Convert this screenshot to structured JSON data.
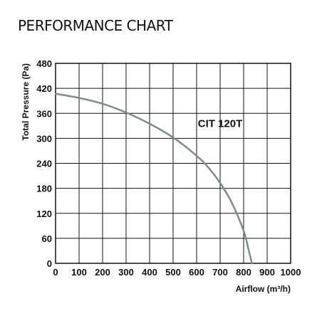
{
  "page": {
    "title": "PERFORMANCE CHART"
  },
  "chart_data": {
    "type": "line",
    "title": "PERFORMANCE CHART",
    "xlabel": "Airflow (m³/h)",
    "ylabel": "Total Pressure (Pa)",
    "xlim": [
      0,
      1000
    ],
    "ylim": [
      0,
      480
    ],
    "x_ticks": [
      0,
      100,
      200,
      300,
      400,
      500,
      600,
      700,
      800,
      900,
      1000
    ],
    "y_ticks": [
      0,
      60,
      120,
      180,
      240,
      300,
      360,
      420,
      480
    ],
    "grid": true,
    "series": [
      {
        "name": "CIT 120T",
        "color": "#7f8c87",
        "x": [
          0,
          100,
          200,
          300,
          400,
          500,
          600,
          650,
          700,
          750,
          800,
          820,
          835
        ],
        "y": [
          407,
          397,
          383,
          362,
          335,
          302,
          258,
          230,
          193,
          145,
          78,
          35,
          0
        ]
      }
    ],
    "annotations": [
      {
        "text": "CIT 120T",
        "x": 700,
        "y": 327
      }
    ]
  }
}
